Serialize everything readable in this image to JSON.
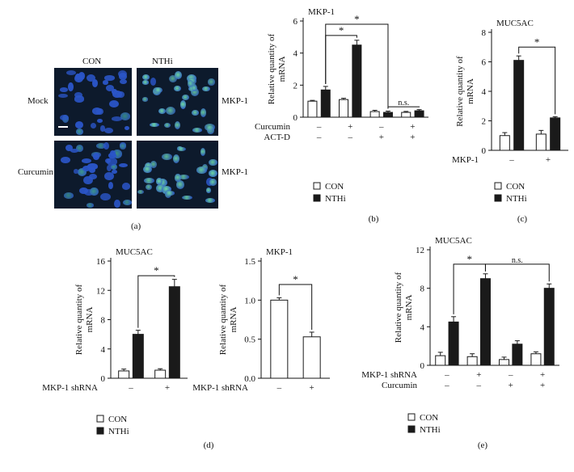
{
  "figure": {
    "panel_a": {
      "tag": "(a)",
      "col_labels": [
        "CON",
        "NTHi"
      ],
      "row_labels": [
        "Mock",
        "Curcumin"
      ],
      "marker_labels": [
        "MKP-1",
        "MKP-1"
      ],
      "colors": {
        "nucleus": "#2a55c8",
        "stain_weak": "#3d9a8a",
        "stain_strong": "#6fdca0",
        "background": "#0d1a2c"
      }
    },
    "legend": {
      "con_label": "CON",
      "nthi_label": "NTHi"
    },
    "colors": {
      "con_fill": "#ffffff",
      "nthi_fill": "#1a1a1a",
      "stroke": "#1a1a1a"
    }
  },
  "chart_data": [
    {
      "id": "b",
      "tag": "(b)",
      "type": "bar",
      "title": "MKP-1",
      "ylabel": "Relative quantity of mRNA",
      "ylim": [
        0,
        6
      ],
      "yticks": [
        0,
        2,
        4,
        6
      ],
      "categories": [
        "1",
        "2",
        "3",
        "4"
      ],
      "series": [
        {
          "name": "CON",
          "values": [
            1.0,
            1.1,
            0.35,
            0.3
          ],
          "errors": [
            0.05,
            0.08,
            0.08,
            0.06
          ]
        },
        {
          "name": "NTHi",
          "values": [
            1.7,
            4.5,
            0.3,
            0.4
          ],
          "errors": [
            0.22,
            0.3,
            0.08,
            0.07
          ]
        }
      ],
      "conditions": [
        {
          "label": "Curcumin",
          "marks": [
            "–",
            "+",
            "–",
            "+"
          ]
        },
        {
          "label": "ACT-D",
          "marks": [
            "–",
            "–",
            "+",
            "+"
          ]
        }
      ],
      "annotations": [
        {
          "text": "*",
          "from": [
            0,
            1
          ],
          "to": [
            1,
            1
          ],
          "height": 5.1
        },
        {
          "text": "*",
          "from": [
            0,
            1
          ],
          "to": [
            2,
            1
          ],
          "height": 5.8
        },
        {
          "text": "n.s.",
          "from": [
            2,
            1
          ],
          "to": [
            3,
            1
          ],
          "height": 0.65
        }
      ]
    },
    {
      "id": "c",
      "tag": "(c)",
      "type": "bar",
      "title": "MUC5AC",
      "ylabel": "Relative quantity of mRNA",
      "ylim": [
        0,
        8
      ],
      "yticks": [
        0,
        2,
        4,
        6,
        8
      ],
      "categories": [
        "1",
        "2"
      ],
      "series": [
        {
          "name": "CON",
          "values": [
            1.0,
            1.1
          ],
          "errors": [
            0.2,
            0.25
          ]
        },
        {
          "name": "NTHi",
          "values": [
            6.1,
            2.2
          ],
          "errors": [
            0.3,
            0.08
          ]
        }
      ],
      "conditions": [
        {
          "label": "MKP-1",
          "marks": [
            "–",
            "+"
          ]
        }
      ],
      "annotations": [
        {
          "text": "*",
          "from": [
            0,
            1
          ],
          "to": [
            1,
            1
          ],
          "height": 7.0
        }
      ]
    },
    {
      "id": "d1",
      "tag": "",
      "type": "bar",
      "title": "MUC5AC",
      "ylabel": "Relative quantity of mRNA",
      "ylim": [
        0,
        16
      ],
      "yticks": [
        0,
        4,
        8,
        12,
        16
      ],
      "categories": [
        "1",
        "2"
      ],
      "series": [
        {
          "name": "CON",
          "values": [
            1.0,
            1.1
          ],
          "errors": [
            0.25,
            0.2
          ]
        },
        {
          "name": "NTHi",
          "values": [
            6.0,
            12.5
          ],
          "errors": [
            0.55,
            1.0
          ]
        }
      ],
      "conditions": [
        {
          "label": "MKP-1 shRNA",
          "marks": [
            "–",
            "+"
          ]
        }
      ],
      "annotations": [
        {
          "text": "*",
          "from": [
            0,
            1
          ],
          "to": [
            1,
            1
          ],
          "height": 14.0
        }
      ]
    },
    {
      "id": "d2",
      "tag": "(d)",
      "type": "bar",
      "title": "MKP-1",
      "ylabel": "Relative quantity of mRNA",
      "ylim": [
        0,
        1.5
      ],
      "yticks": [
        0.0,
        0.5,
        1.0,
        1.5
      ],
      "ytick_labels": [
        "0.0",
        "0.5",
        "1.0",
        "1.5"
      ],
      "categories": [
        "1",
        "2"
      ],
      "series": [
        {
          "name": "CON",
          "values": [
            1.0,
            0.53
          ],
          "errors": [
            0.03,
            0.06
          ]
        }
      ],
      "conditions": [
        {
          "label": "MKP-1 shRNA",
          "marks": [
            "–",
            "+"
          ]
        }
      ],
      "annotations": [
        {
          "text": "*",
          "from": [
            0,
            0
          ],
          "to": [
            1,
            0
          ],
          "height": 1.2
        }
      ]
    },
    {
      "id": "e",
      "tag": "(e)",
      "type": "bar",
      "title": "MUC5AC",
      "ylabel": "Relative quantity of mRNA",
      "ylim": [
        0,
        12
      ],
      "yticks": [
        0,
        4,
        8,
        12
      ],
      "categories": [
        "1",
        "2",
        "3",
        "4"
      ],
      "series": [
        {
          "name": "CON",
          "values": [
            1.0,
            0.9,
            0.6,
            1.2
          ],
          "errors": [
            0.35,
            0.3,
            0.25,
            0.2
          ]
        },
        {
          "name": "NTHi",
          "values": [
            4.5,
            9.0,
            2.2,
            8.0
          ],
          "errors": [
            0.55,
            0.5,
            0.35,
            0.45
          ]
        }
      ],
      "conditions": [
        {
          "label": "MKP-1 shRNA",
          "marks": [
            "–",
            "+",
            "–",
            "+"
          ]
        },
        {
          "label": "Curcumin",
          "marks": [
            "–",
            "–",
            "+",
            "+"
          ]
        }
      ],
      "annotations": [
        {
          "text": "*",
          "from": [
            0,
            1
          ],
          "to": [
            1,
            1
          ],
          "height": 10.5
        },
        {
          "text": "n.s.",
          "from": [
            1,
            1
          ],
          "to": [
            3,
            1
          ],
          "height": 10.5
        }
      ]
    }
  ]
}
